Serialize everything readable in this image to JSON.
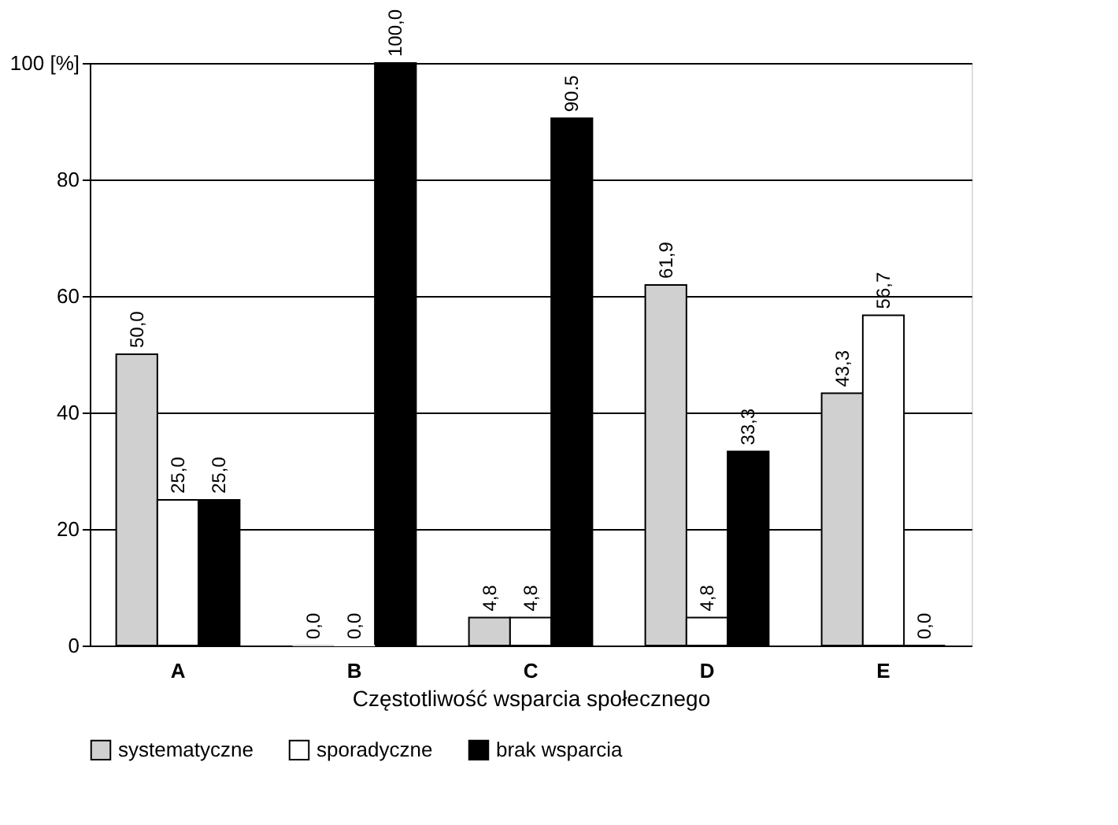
{
  "chart_data": {
    "type": "bar",
    "categories": [
      "A",
      "B",
      "C",
      "D",
      "E"
    ],
    "xlabel": "Częstotliwość wsparcia społecznego",
    "series": [
      {
        "name": "systematyczne",
        "color": "#d0d0d0",
        "values": [
          50.0,
          0.0,
          4.8,
          61.9,
          43.3
        ],
        "value_labels": [
          "50,0",
          "0,0",
          "4,8",
          "61,9",
          "43,3"
        ]
      },
      {
        "name": "sporadyczne",
        "color": "#ffffff",
        "values": [
          25.0,
          0.0,
          4.8,
          4.8,
          56.7
        ],
        "value_labels": [
          "25,0",
          "0,0",
          "4,8",
          "4,8",
          "56,7"
        ]
      },
      {
        "name": "brak wsparcia",
        "color": "#000000",
        "values": [
          25.0,
          100.0,
          90.5,
          33.3,
          0.0
        ],
        "value_labels": [
          "25,0",
          "100,0",
          "90.5",
          "33,3",
          "0,0"
        ]
      }
    ],
    "ylim": [
      0,
      100
    ],
    "yticks": [
      0,
      20,
      40,
      60,
      80,
      {
        "value": 100,
        "label": "100 [%]"
      }
    ],
    "grid": "y",
    "legend": "bottom"
  }
}
